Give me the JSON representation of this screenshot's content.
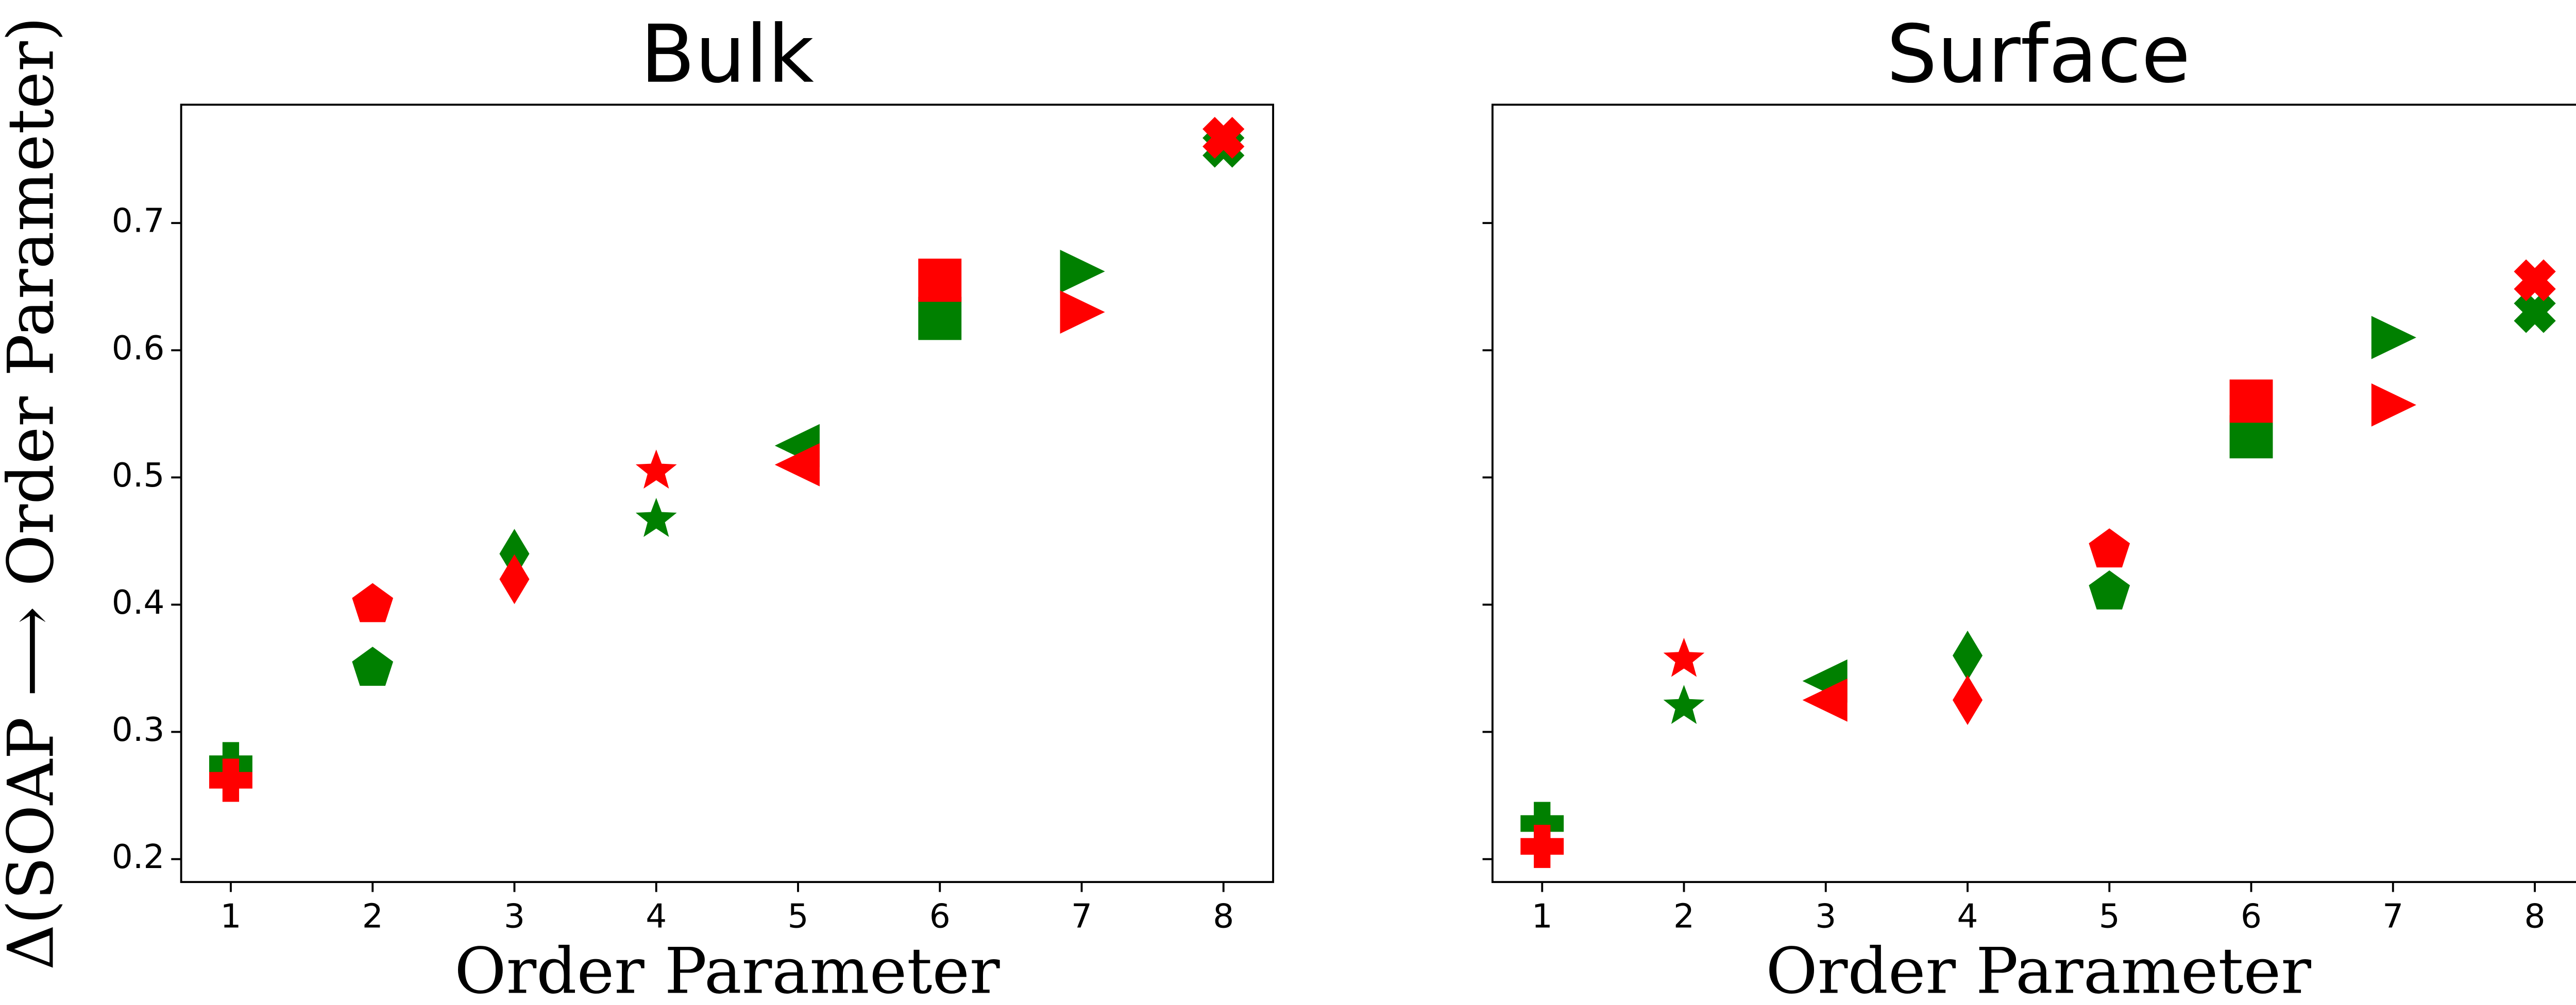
{
  "chart_data": [
    {
      "type": "scatter",
      "title": "Bulk",
      "x_label": "Order Parameter",
      "y_label": "Δ(SOAP ⟶ Order Parameter)",
      "x": [
        1,
        2,
        3,
        4,
        5,
        6,
        7,
        8
      ],
      "markers": [
        "plus",
        "pentagon",
        "thin_diamond",
        "star",
        "triangle_left",
        "square",
        "triangle_right",
        "x"
      ],
      "series": [
        {
          "color": "#008000",
          "values": [
            0.275,
            0.35,
            0.44,
            0.467,
            0.525,
            0.625,
            0.662,
            0.76
          ]
        },
        {
          "color": "#ff0000",
          "values": [
            0.262,
            0.4,
            0.42,
            0.505,
            0.51,
            0.655,
            0.63,
            0.767
          ]
        }
      ],
      "xlim": [
        0.65,
        8.35
      ],
      "xticks": [
        1,
        2,
        3,
        4,
        5,
        6,
        7,
        8
      ],
      "ylim": [
        0.182,
        0.793
      ],
      "yticks": [
        0.2,
        0.3,
        0.4,
        0.5,
        0.6,
        0.7
      ],
      "show_ytick_labels": true
    },
    {
      "type": "scatter",
      "title": "Surface",
      "x_label": "Order Parameter",
      "x": [
        1,
        2,
        3,
        4,
        5,
        6,
        7,
        8
      ],
      "markers": [
        "plus",
        "star",
        "triangle_left",
        "thin_diamond",
        "pentagon",
        "square",
        "triangle_right",
        "x"
      ],
      "series": [
        {
          "color": "#008000",
          "values": [
            0.228,
            0.32,
            0.34,
            0.36,
            0.41,
            0.532,
            0.61,
            0.63
          ]
        },
        {
          "color": "#ff0000",
          "values": [
            0.21,
            0.357,
            0.325,
            0.325,
            0.443,
            0.56,
            0.557,
            0.655
          ]
        }
      ],
      "xlim": [
        0.65,
        8.35
      ],
      "xticks": [
        1,
        2,
        3,
        4,
        5,
        6,
        7,
        8
      ],
      "ylim": [
        0.182,
        0.793
      ],
      "yticks": [
        0.2,
        0.3,
        0.4,
        0.5,
        0.6,
        0.7
      ],
      "show_ytick_labels": false
    }
  ]
}
